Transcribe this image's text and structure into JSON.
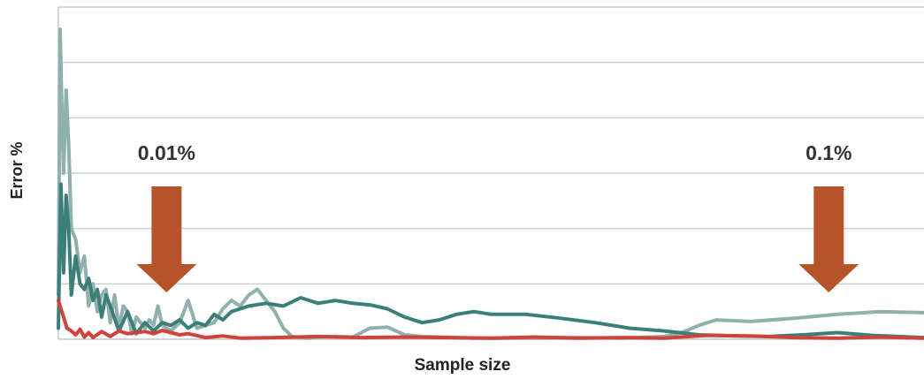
{
  "chart_data": {
    "type": "line",
    "title": "",
    "xlabel": "Sample size",
    "ylabel": "Error %",
    "grid": true,
    "legend": "none",
    "xlim": [
      0,
      1000
    ],
    "ylim": [
      0,
      6
    ],
    "colors": {
      "red": "#d0433a",
      "teal_dark": "#3a7f78",
      "teal_light": "#8fb0ad",
      "arrow": "#b5532a",
      "grid": "#c9d2d2",
      "axis": "#bfc9c9"
    },
    "series": [
      {
        "color_key": "red",
        "x": [
          0,
          3,
          6,
          10,
          15,
          20,
          25,
          30,
          35,
          40,
          50,
          60,
          70,
          80,
          90,
          100,
          110,
          120,
          130,
          140,
          150,
          170,
          190,
          210,
          250,
          300,
          350,
          400,
          450,
          500,
          550,
          600,
          650,
          700,
          750,
          800,
          850,
          900,
          950,
          1000
        ],
        "y": [
          0.7,
          0.55,
          0.4,
          0.2,
          0.15,
          0.08,
          0.18,
          0.04,
          0.12,
          0.03,
          0.14,
          0.05,
          0.15,
          0.1,
          0.12,
          0.14,
          0.1,
          0.16,
          0.12,
          0.08,
          0.1,
          0.03,
          0.06,
          0.02,
          0.03,
          0.05,
          0.03,
          0.04,
          0.03,
          0.02,
          0.04,
          0.02,
          0.03,
          0.02,
          0.07,
          0.06,
          0.03,
          0.02,
          0.04,
          0.02
        ]
      },
      {
        "color_key": "teal_dark",
        "x": [
          0,
          3,
          6,
          9,
          12,
          15,
          20,
          25,
          30,
          35,
          40,
          45,
          50,
          55,
          60,
          70,
          80,
          85,
          90,
          100,
          110,
          120,
          130,
          140,
          150,
          160,
          170,
          180,
          190,
          200,
          220,
          240,
          260,
          280,
          300,
          320,
          340,
          360,
          380,
          400,
          420,
          440,
          460,
          480,
          500,
          540,
          580,
          620,
          660,
          700,
          740,
          780,
          820,
          860,
          900,
          940,
          1000
        ],
        "y": [
          0.2,
          2.8,
          1.2,
          2.6,
          2.0,
          0.8,
          1.5,
          1.0,
          0.9,
          1.1,
          0.7,
          0.9,
          0.4,
          0.8,
          0.6,
          0.15,
          0.5,
          0.3,
          0.1,
          0.3,
          0.15,
          0.3,
          0.25,
          0.35,
          0.2,
          0.3,
          0.25,
          0.45,
          0.35,
          0.5,
          0.6,
          0.65,
          0.6,
          0.75,
          0.65,
          0.7,
          0.65,
          0.62,
          0.55,
          0.4,
          0.3,
          0.35,
          0.45,
          0.5,
          0.45,
          0.45,
          0.38,
          0.3,
          0.2,
          0.15,
          0.08,
          0.06,
          0.05,
          0.08,
          0.12,
          0.07,
          0.03
        ]
      },
      {
        "color_key": "teal_light",
        "x": [
          0,
          2,
          4,
          6,
          9,
          12,
          15,
          20,
          25,
          30,
          35,
          40,
          45,
          50,
          55,
          60,
          65,
          70,
          75,
          80,
          85,
          90,
          95,
          100,
          105,
          110,
          115,
          120,
          130,
          140,
          150,
          160,
          170,
          180,
          190,
          200,
          210,
          220,
          230,
          240,
          250,
          260,
          270,
          280,
          290,
          300,
          320,
          340,
          360,
          380,
          400,
          420,
          440,
          460,
          480,
          500,
          550,
          600,
          650,
          700,
          720,
          740,
          760,
          800,
          850,
          900,
          950,
          1000
        ],
        "y": [
          0.8,
          5.6,
          4.2,
          3.0,
          4.5,
          3.5,
          2.0,
          1.8,
          1.2,
          1.5,
          0.6,
          1.0,
          0.5,
          0.8,
          0.9,
          0.3,
          0.8,
          0.2,
          0.6,
          0.5,
          0.1,
          0.4,
          0.3,
          0.2,
          0.35,
          0.25,
          0.6,
          0.25,
          0.15,
          0.3,
          0.7,
          0.2,
          0.25,
          0.3,
          0.55,
          0.7,
          0.6,
          0.8,
          0.9,
          0.7,
          0.5,
          0.2,
          0.05,
          0.03,
          0.02,
          0.04,
          0.05,
          0.04,
          0.2,
          0.22,
          0.08,
          0.05,
          0.04,
          0.03,
          0.02,
          0.02,
          0.02,
          0.03,
          0.02,
          0.05,
          0.12,
          0.25,
          0.35,
          0.32,
          0.38,
          0.45,
          0.5,
          0.48
        ]
      }
    ],
    "annotations": [
      {
        "text": "0.01%",
        "x": 125
      },
      {
        "text": "0.1%",
        "x": 890
      }
    ]
  }
}
